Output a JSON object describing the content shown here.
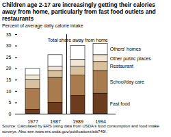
{
  "chart_data": {
    "type": "bar",
    "stacked": true,
    "title": "Children age 2-17 are increasingly getting their calories away from home, particularly from fast food outlets and restaurants",
    "subtitle": "Percent of average daily calorie intake",
    "source": "Source: Calculated by ERS using data from USDA's food consumption and food intake surveys. Also see www.ers.usda.gov/publications/aib749/.",
    "annotation": "Total share away from home",
    "categories": [
      "1977",
      "1987",
      "1989",
      "1994"
    ],
    "series": [
      {
        "name": "Fast food",
        "color": "#6b3d1e",
        "values": [
          2,
          5,
          8,
          9
        ]
      },
      {
        "name": "School/day care",
        "color": "#a97c50",
        "values": [
          9,
          11,
          9,
          10
        ]
      },
      {
        "name": "Restaurant",
        "color": "#d8c09c",
        "values": [
          4,
          3,
          4,
          4
        ]
      },
      {
        "name": "Other public places",
        "color": "#f1e6d3",
        "values": [
          2,
          2,
          3,
          3
        ]
      },
      {
        "name": "Others' homes",
        "color": "#ffffff",
        "values": [
          3,
          5,
          6,
          5
        ]
      }
    ],
    "ylim": [
      0,
      35
    ],
    "yticks": [
      0,
      5,
      10,
      15,
      20,
      25,
      30,
      35
    ]
  }
}
